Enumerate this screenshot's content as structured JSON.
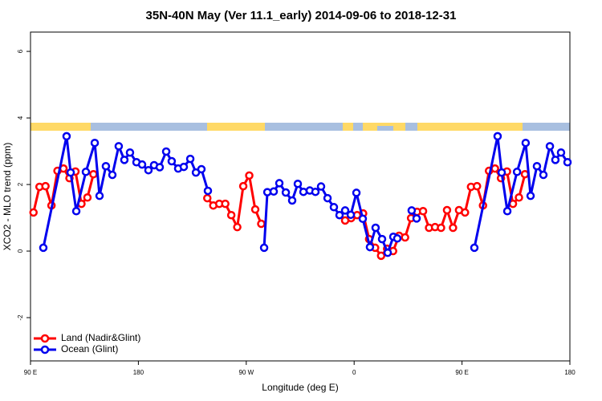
{
  "chart_data": {
    "type": "line",
    "title": "35N-40N May (Ver 11.1_early)   2014-09-06 to 2018-12-31",
    "x_label": "Longitude (deg E)",
    "y_label": "XCO2 - MLO trend (ppm)",
    "xlim": [
      90,
      540
    ],
    "xticks": [
      {
        "value": 90,
        "label": "90 E"
      },
      {
        "value": 180,
        "label": "180"
      },
      {
        "value": 270,
        "label": "90 W"
      },
      {
        "value": 360,
        "label": "0"
      },
      {
        "value": 450,
        "label": "90 E"
      },
      {
        "value": 540,
        "label": "180"
      }
    ],
    "ylim": [
      -3.3,
      6.58
    ],
    "yticks": [
      -2,
      0,
      2,
      4,
      6
    ],
    "legend": "bottom-left",
    "series": [
      {
        "name": "Land (Nadir&Glint)",
        "color": "#ff0000",
        "x": [
          92.5,
          97.5,
          102.5,
          107.5,
          112.5,
          117.5,
          122.5,
          127.5,
          132.5,
          137.5,
          142.5,
          null,
          237.5,
          242.5,
          247.5,
          252.5,
          257.5,
          262.5,
          267.5,
          272.5,
          277.5,
          282.5,
          null,
          352.5,
          357.5,
          362.5,
          367.5,
          372.5,
          377.5,
          382.5,
          387.5,
          392.5,
          397.5,
          402.5,
          407.5,
          412.5,
          417.5,
          422.5,
          427.5,
          432.5,
          437.5,
          442.5,
          447.5,
          452.5,
          457.5,
          462.5,
          467.5,
          472.5,
          477.5,
          482.5,
          487.5,
          492.5,
          497.5,
          502.5
        ],
        "values": [
          1.16,
          1.93,
          1.95,
          1.37,
          2.41,
          2.48,
          2.19,
          2.39,
          1.42,
          1.61,
          2.31,
          null,
          1.59,
          1.37,
          1.42,
          1.42,
          1.08,
          0.72,
          1.95,
          2.27,
          1.25,
          0.82,
          null,
          0.92,
          0.99,
          1.08,
          1.13,
          0.36,
          0.1,
          -0.14,
          0.07,
          0.0,
          0.46,
          0.41,
          0.99,
          1.18,
          1.2,
          0.7,
          0.72,
          0.7,
          1.23,
          0.7,
          1.23,
          1.16,
          1.93,
          1.95,
          1.37,
          2.41,
          2.48,
          2.19,
          2.39,
          1.42,
          1.61,
          2.31
        ]
      },
      {
        "name": "Ocean (Glint)",
        "color": "#0000ee",
        "x": [
          100.7,
          120.1,
          123.5,
          128.2,
          136.2,
          143.6,
          147.6,
          152.9,
          158.3,
          163.6,
          168.3,
          173.0,
          178.4,
          183.1,
          188.4,
          193.1,
          197.8,
          203.2,
          207.8,
          213.2,
          217.9,
          223.3,
          228.0,
          232.6,
          238.0,
          null,
          284.9,
          287.6,
          292.9,
          297.6,
          303.0,
          308.3,
          313.0,
          317.7,
          323.0,
          327.7,
          332.4,
          337.8,
          343.1,
          347.8,
          352.5,
          357.2,
          361.9,
          367.2,
          373.2,
          377.9,
          383.3,
          388.0,
          392.7,
          396.0,
          null,
          408.0,
          412.1,
          null,
          460.3,
          479.7,
          483.1,
          487.8,
          495.9,
          503.1,
          507.2,
          512.5,
          517.9,
          523.3,
          527.9,
          532.6,
          538.0
        ],
        "values": [
          0.1,
          3.45,
          2.36,
          1.2,
          2.38,
          3.25,
          1.66,
          2.55,
          2.29,
          3.15,
          2.74,
          2.96,
          2.67,
          2.6,
          2.43,
          2.58,
          2.52,
          2.99,
          2.7,
          2.48,
          2.53,
          2.77,
          2.36,
          2.46,
          1.81,
          null,
          0.1,
          1.77,
          1.79,
          2.04,
          1.76,
          1.52,
          2.02,
          1.78,
          1.82,
          1.78,
          1.94,
          1.59,
          1.32,
          1.08,
          1.22,
          1.09,
          1.75,
          0.97,
          0.12,
          0.7,
          0.36,
          -0.05,
          0.43,
          0.38,
          null,
          1.22,
          0.98,
          null,
          0.1,
          3.45,
          2.36,
          1.2,
          2.38,
          3.25,
          1.66,
          2.55,
          2.29,
          3.15,
          2.74,
          2.96,
          2.67
        ]
      }
    ]
  }
}
